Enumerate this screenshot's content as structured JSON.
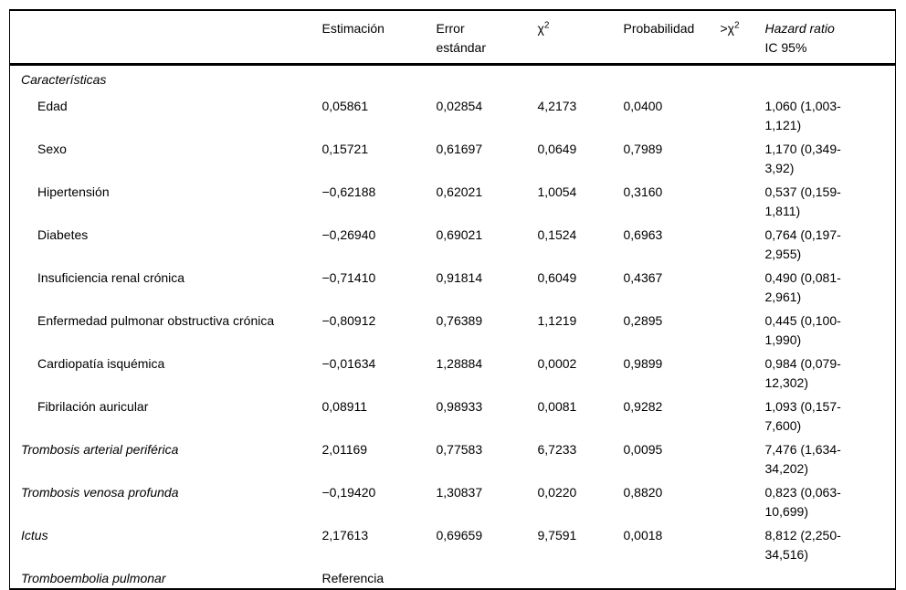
{
  "colors": {
    "text": "#000000",
    "border": "#000000",
    "background": "#ffffff"
  },
  "table": {
    "headers": {
      "feature": "",
      "estimate": "Estimación",
      "std_error": "Error estándar",
      "chi": "χ",
      "chi_sup": "2",
      "probability": "Probabilidad",
      "gt_chi": ">χ",
      "gt_chi_sup": "2",
      "hazard_ratio": "Hazard ratio",
      "ic95": "IC 95%"
    },
    "rows": [
      {
        "label": "Características",
        "italic": true,
        "indent": false,
        "est": "",
        "se": "",
        "chi": "",
        "p": "",
        "hr": ""
      },
      {
        "label": "Edad",
        "italic": false,
        "indent": true,
        "est": "0,05861",
        "se": "0,02854",
        "chi": "4,2173",
        "p": "0,0400",
        "hr": "1,060 (1,003-1,121)"
      },
      {
        "label": "Sexo",
        "italic": false,
        "indent": true,
        "est": "0,15721",
        "se": "0,61697",
        "chi": "0,0649",
        "p": "0,7989",
        "hr": "1,170 (0,349-3,92)"
      },
      {
        "label": "Hipertensión",
        "italic": false,
        "indent": true,
        "est": "−0,62188",
        "se": "0,62021",
        "chi": "1,0054",
        "p": "0,3160",
        "hr": "0,537 (0,159-1,811)"
      },
      {
        "label": "Diabetes",
        "italic": false,
        "indent": true,
        "est": "−0,26940",
        "se": "0,69021",
        "chi": "0,1524",
        "p": "0,6963",
        "hr": "0,764 (0,197-2,955)"
      },
      {
        "label": "Insuficiencia renal crónica",
        "italic": false,
        "indent": true,
        "est": "−0,71410",
        "se": "0,91814",
        "chi": "0,6049",
        "p": "0,4367",
        "hr": "0,490 (0,081-2,961)"
      },
      {
        "label": "Enfermedad pulmonar obstructiva crónica",
        "italic": false,
        "indent": true,
        "est": "−0,80912",
        "se": "0,76389",
        "chi": "1,1219",
        "p": "0,2895",
        "hr": "0,445 (0,100-1,990)"
      },
      {
        "label": "Cardiopatía isquémica",
        "italic": false,
        "indent": true,
        "est": "−0,01634",
        "se": "1,28884",
        "chi": "0,0002",
        "p": "0,9899",
        "hr": "0,984 (0,079-12,302)"
      },
      {
        "label": "Fibrilación auricular",
        "italic": false,
        "indent": true,
        "est": "0,08911",
        "se": "0,98933",
        "chi": "0,0081",
        "p": "0,9282",
        "hr": "1,093 (0,157-7,600)"
      },
      {
        "label": "Trombosis arterial periférica",
        "italic": true,
        "indent": false,
        "est": "2,01169",
        "se": "0,77583",
        "chi": "6,7233",
        "p": "0,0095",
        "hr": "7,476 (1,634-34,202)"
      },
      {
        "label": "Trombosis venosa profunda",
        "italic": true,
        "indent": false,
        "est": "−0,19420",
        "se": "1,30837",
        "chi": "0,0220",
        "p": "0,8820",
        "hr": "0,823 (0,063-10,699)"
      },
      {
        "label": "Ictus",
        "italic": true,
        "indent": false,
        "est": "2,17613",
        "se": "0,69659",
        "chi": "9,7591",
        "p": "0,0018",
        "hr": "8,812 (2,250-34,516)"
      },
      {
        "label": "Tromboembolia pulmonar",
        "italic": true,
        "indent": false,
        "est": "Referencia",
        "se": "",
        "chi": "",
        "p": "",
        "hr": ""
      }
    ]
  }
}
